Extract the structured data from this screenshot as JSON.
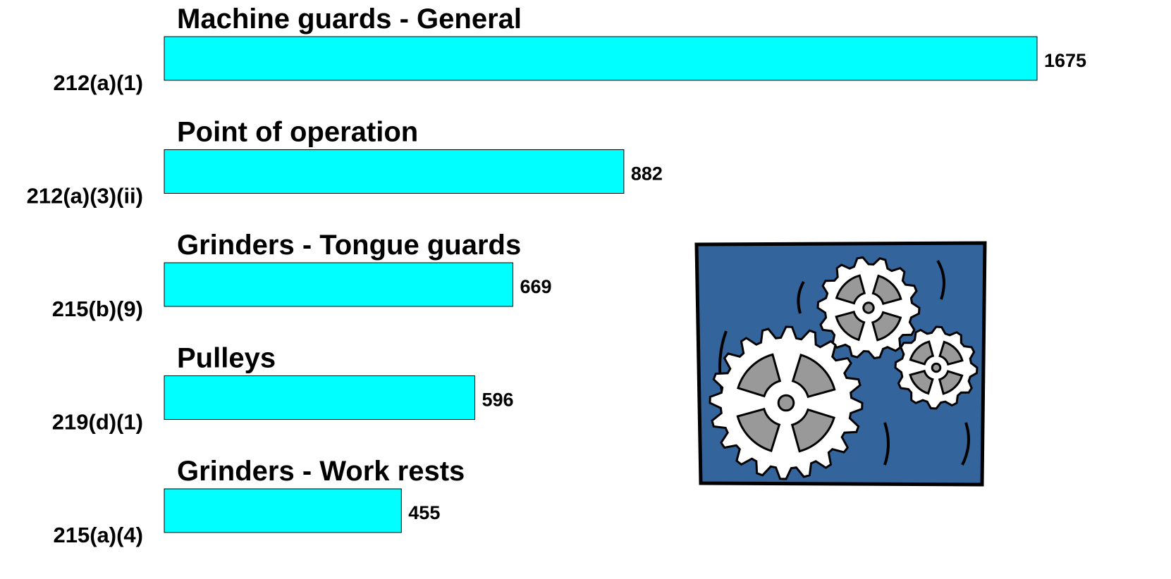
{
  "chart_data": {
    "type": "bar",
    "orientation": "horizontal",
    "categories": [
      "212(a)(1)",
      "212(a)(3)(ii)",
      "215(b)(9)",
      "219(d)(1)",
      "215(a)(4)"
    ],
    "annotations": [
      "Machine guards - General",
      "Point of operation",
      "Grinders - Tongue guards",
      "Pulleys",
      "Grinders -  Work rests"
    ],
    "values": [
      1675,
      882,
      669,
      596,
      455
    ],
    "color": "#00ffff"
  }
}
